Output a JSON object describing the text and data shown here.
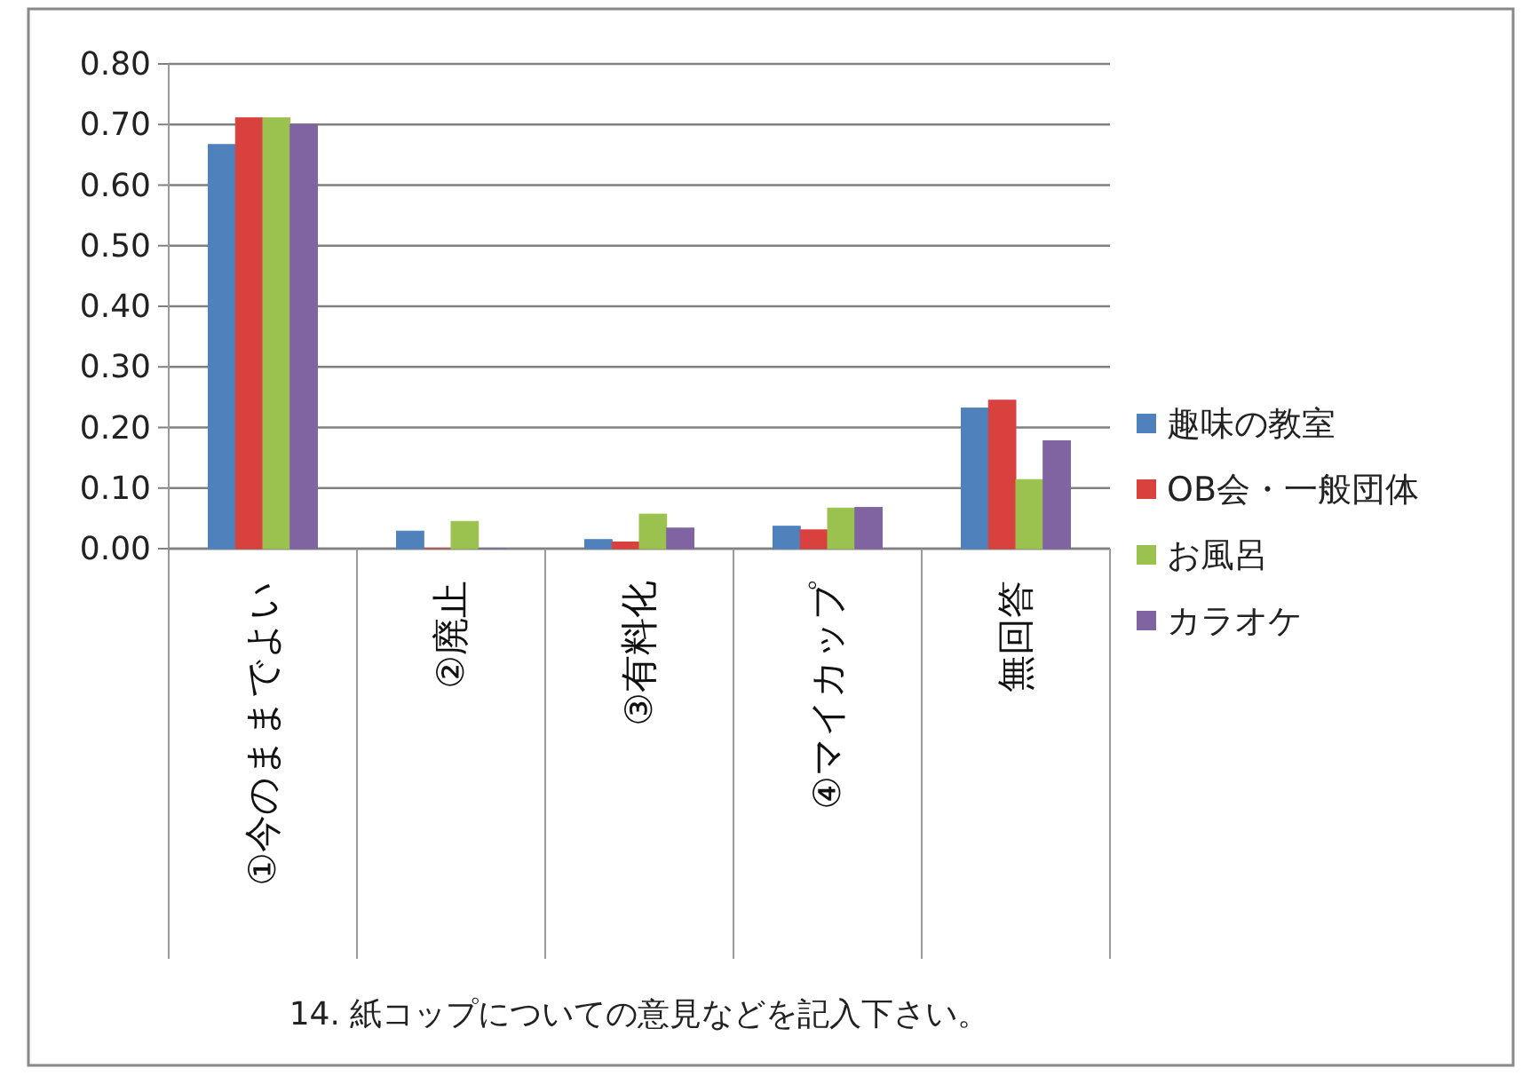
{
  "chart_data": {
    "type": "bar",
    "xlabel": "14. 紙コップについての意見などを記入下さい。",
    "categories": [
      "①今のままでよい",
      "②廃止",
      "③有料化",
      "④マイカップ",
      "無回答"
    ],
    "series": [
      {
        "name": "趣味の教室",
        "color": "#4f81bd",
        "values": [
          0.667,
          0.029,
          0.015,
          0.037,
          0.232
        ]
      },
      {
        "name": "OB会・一般団体",
        "color": "#d9413f",
        "values": [
          0.711,
          0,
          0.011,
          0.031,
          0.245
        ]
      },
      {
        "name": "お風呂",
        "color": "#9bc24f",
        "values": [
          0.711,
          0.045,
          0.057,
          0.067,
          0.114
        ]
      },
      {
        "name": "カラオケ",
        "color": "#8064a2",
        "values": [
          0.7,
          0,
          0.034,
          0.068,
          0.178
        ]
      }
    ],
    "ylim": [
      0,
      0.8
    ],
    "yticks": [
      {
        "value": 0,
        "label": "0.00"
      },
      {
        "value": 0.1,
        "label": "0.10"
      },
      {
        "value": 0.2,
        "label": "0.20"
      },
      {
        "value": 0.3,
        "label": "0.30"
      },
      {
        "value": 0.4,
        "label": "0.40"
      },
      {
        "value": 0.5,
        "label": "0.50"
      },
      {
        "value": 0.6,
        "label": "0.60"
      },
      {
        "value": 0.7,
        "label": "0.70"
      },
      {
        "value": 0.8,
        "label": "0.80"
      }
    ],
    "grid": "y",
    "legend": "right"
  }
}
